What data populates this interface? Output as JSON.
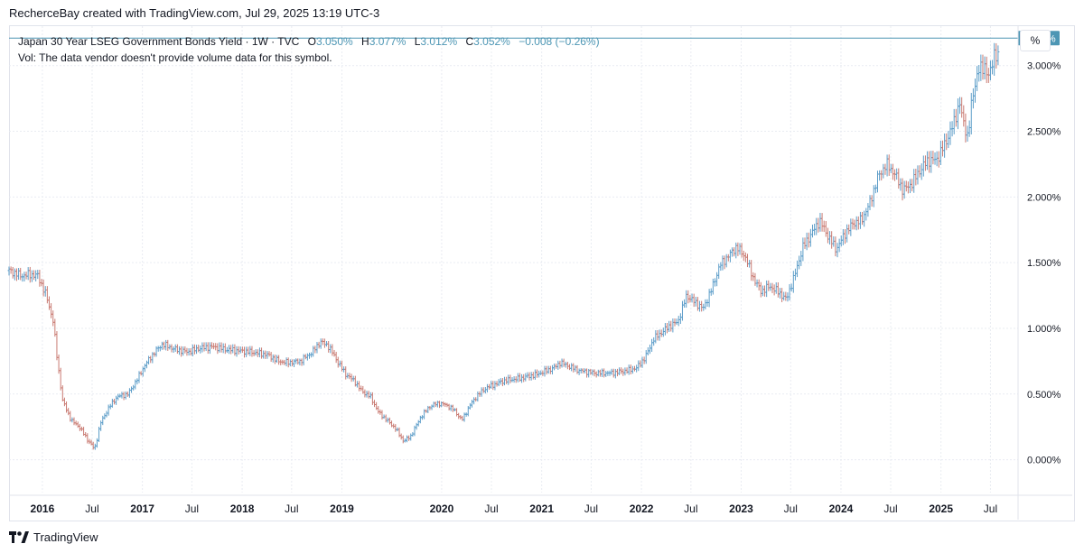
{
  "header": {
    "credit": "RecherceBay created with TradingView.com, Jul 29, 2025 13:19 UTC-3"
  },
  "legend": {
    "symbol_line": "Japan 30 Year LSEG Government Bonds Yield · 1W · TVC",
    "open_label": "O",
    "open": "3.050%",
    "high_label": "H",
    "high": "3.077%",
    "low_label": "L",
    "low": "3.012%",
    "close_label": "C",
    "close": "3.052%",
    "change": "−0.008 (−0.26%)",
    "volume_note": "Vol: The data vendor doesn't provide volume data for this symbol."
  },
  "toolbar": {
    "percent_label": "%"
  },
  "footer": {
    "brand": "TradingView",
    "brand_icon": "tradingview-logo-icon"
  },
  "colors": {
    "up": "#5b9cc8",
    "down": "#c97a72",
    "grid": "#e9ecf2",
    "price_line": "#4d96b4",
    "price_label_bg": "#4d96b4",
    "axis_text": "#131722"
  },
  "chart_data": {
    "type": "ohlc-bar",
    "title": "Japan 30 Year LSEG Government Bonds Yield",
    "interval": "1W",
    "source": "TVC",
    "y_unit": "%",
    "ylim": [
      -0.25,
      3.3
    ],
    "xlim": [
      "2015-09-01",
      "2025-10-10"
    ],
    "current_price_label": "3.209%",
    "current_price": 3.209,
    "y_ticks": [
      {
        "value": 0.0,
        "label": "0.000%"
      },
      {
        "value": 0.5,
        "label": "0.500%"
      },
      {
        "value": 1.0,
        "label": "1.000%"
      },
      {
        "value": 1.5,
        "label": "1.500%"
      },
      {
        "value": 2.0,
        "label": "2.000%"
      },
      {
        "value": 2.5,
        "label": "2.500%"
      },
      {
        "value": 3.0,
        "label": "3.000%"
      }
    ],
    "x_ticks": [
      {
        "date": "2016-01-01",
        "label": "2016",
        "bold": true
      },
      {
        "date": "2016-07-01",
        "label": "Jul",
        "bold": false
      },
      {
        "date": "2017-01-01",
        "label": "2017",
        "bold": true
      },
      {
        "date": "2017-07-01",
        "label": "Jul",
        "bold": false
      },
      {
        "date": "2018-01-01",
        "label": "2018",
        "bold": true
      },
      {
        "date": "2018-07-01",
        "label": "Jul",
        "bold": false
      },
      {
        "date": "2019-01-01",
        "label": "2019",
        "bold": true
      },
      {
        "date": "2020-01-01",
        "label": "2020",
        "bold": true
      },
      {
        "date": "2020-07-01",
        "label": "Jul",
        "bold": false
      },
      {
        "date": "2021-01-01",
        "label": "2021",
        "bold": true
      },
      {
        "date": "2021-07-01",
        "label": "Jul",
        "bold": false
      },
      {
        "date": "2022-01-01",
        "label": "2022",
        "bold": true
      },
      {
        "date": "2022-07-01",
        "label": "Jul",
        "bold": false
      },
      {
        "date": "2023-01-01",
        "label": "2023",
        "bold": true
      },
      {
        "date": "2023-07-01",
        "label": "Jul",
        "bold": false
      },
      {
        "date": "2024-01-01",
        "label": "2024",
        "bold": true
      },
      {
        "date": "2024-07-01",
        "label": "Jul",
        "bold": false
      },
      {
        "date": "2025-01-01",
        "label": "2025",
        "bold": true
      },
      {
        "date": "2025-07-01",
        "label": "Jul",
        "bold": false
      }
    ],
    "series": [
      {
        "name": "Japan 30 Year LSEG Government Bonds Yield",
        "points": [
          [
            "2015-09-01",
            1.44
          ],
          [
            "2015-10-15",
            1.4
          ],
          [
            "2015-11-15",
            1.41
          ],
          [
            "2015-12-15",
            1.4
          ],
          [
            "2016-01-15",
            1.25
          ],
          [
            "2016-02-10",
            1.05
          ],
          [
            "2016-02-25",
            0.75
          ],
          [
            "2016-03-15",
            0.45
          ],
          [
            "2016-04-15",
            0.3
          ],
          [
            "2016-05-15",
            0.25
          ],
          [
            "2016-06-15",
            0.15
          ],
          [
            "2016-07-10",
            0.08
          ],
          [
            "2016-08-01",
            0.28
          ],
          [
            "2016-09-01",
            0.4
          ],
          [
            "2016-10-01",
            0.48
          ],
          [
            "2016-11-10",
            0.5
          ],
          [
            "2016-12-15",
            0.62
          ],
          [
            "2017-01-10",
            0.72
          ],
          [
            "2017-02-15",
            0.82
          ],
          [
            "2017-03-15",
            0.88
          ],
          [
            "2017-05-01",
            0.84
          ],
          [
            "2017-06-15",
            0.82
          ],
          [
            "2017-08-01",
            0.85
          ],
          [
            "2017-09-15",
            0.86
          ],
          [
            "2017-11-01",
            0.84
          ],
          [
            "2017-12-15",
            0.83
          ],
          [
            "2018-02-01",
            0.82
          ],
          [
            "2018-04-01",
            0.8
          ],
          [
            "2018-05-15",
            0.75
          ],
          [
            "2018-06-15",
            0.74
          ],
          [
            "2018-08-01",
            0.75
          ],
          [
            "2018-09-15",
            0.82
          ],
          [
            "2018-10-15",
            0.9
          ],
          [
            "2018-11-15",
            0.86
          ],
          [
            "2018-12-15",
            0.75
          ],
          [
            "2019-01-15",
            0.65
          ],
          [
            "2019-02-15",
            0.6
          ],
          [
            "2019-03-15",
            0.52
          ],
          [
            "2019-04-15",
            0.48
          ],
          [
            "2019-05-15",
            0.36
          ],
          [
            "2019-06-15",
            0.3
          ],
          [
            "2019-07-15",
            0.24
          ],
          [
            "2019-08-15",
            0.14
          ],
          [
            "2019-09-10",
            0.18
          ],
          [
            "2019-10-15",
            0.32
          ],
          [
            "2019-11-15",
            0.4
          ],
          [
            "2019-12-15",
            0.43
          ],
          [
            "2020-01-15",
            0.42
          ],
          [
            "2020-02-15",
            0.38
          ],
          [
            "2020-03-15",
            0.3
          ],
          [
            "2020-04-15",
            0.42
          ],
          [
            "2020-05-15",
            0.5
          ],
          [
            "2020-06-15",
            0.55
          ],
          [
            "2020-08-15",
            0.6
          ],
          [
            "2020-10-15",
            0.62
          ],
          [
            "2020-12-15",
            0.65
          ],
          [
            "2021-02-15",
            0.7
          ],
          [
            "2021-03-10",
            0.74
          ],
          [
            "2021-05-15",
            0.68
          ],
          [
            "2021-07-15",
            0.66
          ],
          [
            "2021-09-15",
            0.66
          ],
          [
            "2021-11-15",
            0.68
          ],
          [
            "2021-12-15",
            0.7
          ],
          [
            "2022-01-15",
            0.78
          ],
          [
            "2022-02-15",
            0.92
          ],
          [
            "2022-04-15",
            1.02
          ],
          [
            "2022-05-15",
            1.05
          ],
          [
            "2022-06-15",
            1.25
          ],
          [
            "2022-07-15",
            1.2
          ],
          [
            "2022-08-15",
            1.15
          ],
          [
            "2022-09-15",
            1.3
          ],
          [
            "2022-10-15",
            1.48
          ],
          [
            "2022-11-15",
            1.55
          ],
          [
            "2022-12-15",
            1.62
          ],
          [
            "2023-01-15",
            1.55
          ],
          [
            "2023-02-15",
            1.38
          ],
          [
            "2023-03-15",
            1.28
          ],
          [
            "2023-04-15",
            1.32
          ],
          [
            "2023-05-15",
            1.28
          ],
          [
            "2023-06-15",
            1.22
          ],
          [
            "2023-07-15",
            1.4
          ],
          [
            "2023-08-15",
            1.62
          ],
          [
            "2023-09-15",
            1.72
          ],
          [
            "2023-10-15",
            1.82
          ],
          [
            "2023-11-15",
            1.7
          ],
          [
            "2023-12-15",
            1.6
          ],
          [
            "2024-01-15",
            1.72
          ],
          [
            "2024-02-15",
            1.8
          ],
          [
            "2024-03-15",
            1.82
          ],
          [
            "2024-04-15",
            1.95
          ],
          [
            "2024-05-15",
            2.15
          ],
          [
            "2024-06-15",
            2.25
          ],
          [
            "2024-07-15",
            2.18
          ],
          [
            "2024-08-15",
            2.05
          ],
          [
            "2024-09-15",
            2.1
          ],
          [
            "2024-10-15",
            2.2
          ],
          [
            "2024-11-15",
            2.28
          ],
          [
            "2024-12-15",
            2.28
          ],
          [
            "2025-01-15",
            2.4
          ],
          [
            "2025-02-15",
            2.55
          ],
          [
            "2025-03-10",
            2.72
          ],
          [
            "2025-03-20",
            2.6
          ],
          [
            "2025-04-10",
            2.45
          ],
          [
            "2025-04-25",
            2.75
          ],
          [
            "2025-05-15",
            2.95
          ],
          [
            "2025-06-10",
            3.0
          ],
          [
            "2025-06-25",
            2.9
          ],
          [
            "2025-07-15",
            3.1
          ],
          [
            "2025-07-29",
            3.05
          ]
        ]
      }
    ]
  }
}
